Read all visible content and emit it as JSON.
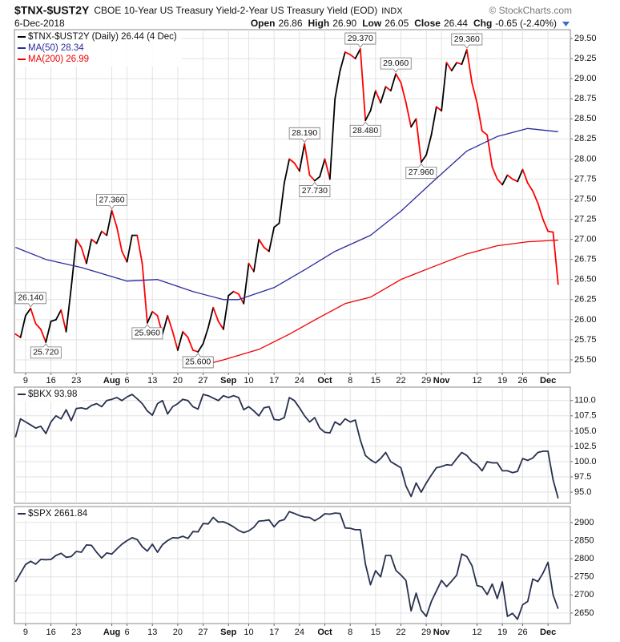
{
  "header": {
    "symbol": "$TNX-$UST2Y",
    "description": "CBOE 10-Year US Treasury Yield-2-Year US Treasury Yield (EOD)",
    "exchange": "INDX",
    "credit": "© StockCharts.com",
    "date": "6-Dec-2018",
    "stats": [
      {
        "label": "Open",
        "value": "26.86"
      },
      {
        "label": "High",
        "value": "26.90"
      },
      {
        "label": "Low",
        "value": "26.05"
      },
      {
        "label": "Close",
        "value": "26.44"
      },
      {
        "label": "Chg",
        "value": "-0.65 (-2.40%)"
      }
    ]
  },
  "chart_data": [
    {
      "type": "line",
      "xlim": [
        -0.2,
        109.4
      ],
      "ylim": [
        25.34,
        29.61
      ],
      "grid": true,
      "yticks": [
        {
          "value": 25.5,
          "label": "25.50"
        },
        {
          "value": 25.75,
          "label": "25.75"
        },
        {
          "value": 26,
          "label": "26.00"
        },
        {
          "value": 26.25,
          "label": "26.25"
        },
        {
          "value": 26.5,
          "label": "26.50"
        },
        {
          "value": 26.75,
          "label": "26.75"
        },
        {
          "value": 27,
          "label": "27.00"
        },
        {
          "value": 27.25,
          "label": "27.25"
        },
        {
          "value": 27.5,
          "label": "27.50"
        },
        {
          "value": 27.75,
          "label": "27.75"
        },
        {
          "value": 28,
          "label": "28.00"
        },
        {
          "value": 28.25,
          "label": "28.25"
        },
        {
          "value": 28.5,
          "label": "28.50"
        },
        {
          "value": 28.75,
          "label": "28.75"
        },
        {
          "value": 29,
          "label": "29.00"
        },
        {
          "value": 29.25,
          "label": "29.25"
        },
        {
          "value": 29.5,
          "label": "29.50"
        }
      ],
      "xticks": [
        {
          "value": 2,
          "label": "9"
        },
        {
          "value": 7,
          "label": "16"
        },
        {
          "value": 12,
          "label": "23"
        },
        {
          "value": 19,
          "label": "Aug"
        },
        {
          "value": 22,
          "label": "6"
        },
        {
          "value": 27,
          "label": "13"
        },
        {
          "value": 32,
          "label": "20"
        },
        {
          "value": 37,
          "label": "27"
        },
        {
          "value": 42,
          "label": "Sep"
        },
        {
          "value": 46,
          "label": "10"
        },
        {
          "value": 51,
          "label": "17"
        },
        {
          "value": 56,
          "label": "24"
        },
        {
          "value": 61,
          "label": "Oct"
        },
        {
          "value": 66,
          "label": "8"
        },
        {
          "value": 71,
          "label": "15"
        },
        {
          "value": 76,
          "label": "22"
        },
        {
          "value": 81,
          "label": "29"
        },
        {
          "value": 84,
          "label": "Nov"
        },
        {
          "value": 91,
          "label": "12"
        },
        {
          "value": 96,
          "label": "19"
        },
        {
          "value": 100,
          "label": "26"
        },
        {
          "value": 105,
          "label": "Dec"
        }
      ],
      "series": [
        {
          "name": "$TNX-$UST2Y (Daily) 26.44 (4 Dec)",
          "color": "#000000",
          "down_color": "#ff0000",
          "values": [
            25.82,
            25.78,
            26.05,
            26.14,
            25.95,
            25.88,
            25.72,
            25.98,
            26.0,
            26.12,
            25.85,
            26.4,
            27.0,
            26.9,
            26.7,
            27.0,
            26.95,
            27.1,
            27.05,
            27.36,
            27.15,
            26.85,
            26.72,
            27.05,
            27.05,
            26.7,
            25.96,
            26.1,
            26.05,
            25.82,
            26.05,
            25.85,
            25.62,
            25.85,
            25.78,
            25.62,
            25.6,
            25.7,
            25.9,
            26.15,
            25.98,
            25.88,
            26.3,
            26.35,
            26.32,
            26.2,
            26.7,
            26.6,
            27.0,
            26.9,
            26.85,
            27.15,
            27.2,
            27.7,
            28.0,
            27.95,
            27.85,
            28.19,
            27.8,
            27.73,
            27.78,
            28.0,
            27.75,
            28.75,
            29.1,
            29.33,
            29.3,
            29.25,
            29.37,
            28.48,
            28.6,
            28.85,
            28.7,
            28.9,
            28.85,
            29.06,
            28.95,
            28.7,
            28.4,
            28.5,
            27.96,
            28.05,
            28.3,
            28.65,
            28.6,
            29.2,
            29.1,
            29.2,
            29.18,
            29.36,
            28.95,
            28.7,
            28.35,
            28.3,
            27.9,
            27.75,
            27.68,
            27.8,
            27.75,
            27.72,
            27.87,
            27.7,
            27.6,
            27.45,
            27.25,
            27.1,
            27.09,
            26.44
          ]
        },
        {
          "name": "MA(50) 28.34",
          "color": "#2b2b9e",
          "x": [
            0,
            6,
            13,
            22,
            28,
            35,
            41,
            44,
            51,
            57,
            63,
            70,
            76,
            82,
            89,
            95,
            101,
            107
          ],
          "values": [
            26.9,
            26.75,
            26.65,
            26.48,
            26.5,
            26.35,
            26.25,
            26.25,
            26.4,
            26.62,
            26.85,
            27.05,
            27.35,
            27.7,
            28.1,
            28.28,
            28.38,
            28.34
          ]
        },
        {
          "name": "MA(200) 26.99",
          "color": "#ee0000",
          "x": [
            35,
            41,
            48,
            54,
            60,
            65,
            70,
            76,
            82,
            89,
            95,
            101,
            107
          ],
          "values": [
            25.4,
            25.5,
            25.63,
            25.82,
            26.03,
            26.2,
            26.28,
            26.5,
            26.65,
            26.82,
            26.92,
            26.97,
            26.99
          ]
        }
      ],
      "annotations": [
        {
          "x": 3,
          "label": "26.140",
          "position": "above"
        },
        {
          "x": 6,
          "label": "25.720",
          "position": "below"
        },
        {
          "x": 19,
          "label": "27.360",
          "position": "above"
        },
        {
          "x": 26,
          "label": "25.960",
          "position": "below"
        },
        {
          "x": 36,
          "label": "25.600",
          "position": "below"
        },
        {
          "x": 57,
          "label": "28.190",
          "position": "above"
        },
        {
          "x": 59,
          "label": "27.730",
          "position": "below"
        },
        {
          "x": 68,
          "label": "29.370",
          "position": "above"
        },
        {
          "x": 69,
          "label": "28.480",
          "position": "below"
        },
        {
          "x": 75,
          "label": "29.060",
          "position": "above"
        },
        {
          "x": 80,
          "label": "27.960",
          "position": "below"
        },
        {
          "x": 89,
          "label": "29.360",
          "position": "above"
        }
      ]
    },
    {
      "type": "line",
      "xlim": [
        -0.2,
        109.4
      ],
      "ylim": [
        93.17,
        112.2
      ],
      "grid": true,
      "yticks": [
        {
          "value": 95,
          "label": "95.0"
        },
        {
          "value": 97.5,
          "label": "97.5"
        },
        {
          "value": 100,
          "label": "100.0"
        },
        {
          "value": 102.5,
          "label": "102.5"
        },
        {
          "value": 105,
          "label": "105.0"
        },
        {
          "value": 107.5,
          "label": "107.5"
        },
        {
          "value": 110,
          "label": "110.0"
        }
      ],
      "series": [
        {
          "name": "$BKX 93.98",
          "color": "#27304f",
          "values": [
            104.0,
            107.0,
            106.5,
            106.0,
            105.5,
            105.8,
            104.6,
            106.5,
            107.5,
            107.0,
            108.5,
            106.7,
            108.7,
            108.8,
            108.6,
            109.2,
            109.5,
            109.0,
            110.0,
            110.2,
            110.5,
            110.0,
            110.6,
            111.0,
            110.3,
            109.5,
            108.3,
            107.6,
            109.5,
            110.0,
            107.8,
            109.0,
            109.5,
            110.2,
            110.0,
            109.0,
            108.6,
            111.0,
            110.8,
            110.4,
            110.0,
            110.8,
            110.5,
            110.8,
            110.5,
            108.5,
            109.0,
            108.3,
            107.5,
            108.8,
            109.0,
            106.9,
            106.8,
            107.2,
            110.5,
            110.0,
            108.8,
            107.5,
            106.5,
            107.2,
            105.5,
            104.8,
            104.7,
            106.5,
            106.0,
            107.0,
            106.5,
            106.8,
            103.5,
            101.0,
            100.3,
            99.8,
            100.5,
            101.5,
            100.0,
            99.5,
            99.0,
            96.0,
            94.3,
            96.5,
            95.0,
            96.5,
            97.8,
            99.0,
            99.2,
            99.5,
            99.4,
            100.5,
            101.5,
            101.0,
            100.0,
            99.5,
            98.5,
            100.0,
            99.8,
            99.8,
            98.5,
            98.5,
            98.2,
            98.4,
            100.5,
            100.2,
            100.6,
            101.5,
            101.7,
            101.7,
            97.0,
            93.98
          ]
        }
      ]
    },
    {
      "type": "line",
      "xlim": [
        -0.2,
        109.4
      ],
      "ylim": [
        2621,
        2944
      ],
      "grid": true,
      "yticks": [
        2650,
        2700,
        2750,
        2800,
        2850,
        2900
      ],
      "xticks": [
        {
          "value": 2,
          "label": "9"
        },
        {
          "value": 7,
          "label": "16"
        },
        {
          "value": 12,
          "label": "23"
        },
        {
          "value": 19,
          "label": "Aug"
        },
        {
          "value": 22,
          "label": "6"
        },
        {
          "value": 27,
          "label": "13"
        },
        {
          "value": 32,
          "label": "20"
        },
        {
          "value": 37,
          "label": "27"
        },
        {
          "value": 42,
          "label": "Sep"
        },
        {
          "value": 46,
          "label": "10"
        },
        {
          "value": 51,
          "label": "17"
        },
        {
          "value": 56,
          "label": "24"
        },
        {
          "value": 61,
          "label": "Oct"
        },
        {
          "value": 66,
          "label": "8"
        },
        {
          "value": 71,
          "label": "15"
        },
        {
          "value": 76,
          "label": "22"
        },
        {
          "value": 81,
          "label": "29"
        },
        {
          "value": 84,
          "label": "Nov"
        },
        {
          "value": 91,
          "label": "12"
        },
        {
          "value": 96,
          "label": "19"
        },
        {
          "value": 100,
          "label": "26"
        },
        {
          "value": 105,
          "label": "Dec"
        }
      ],
      "series": [
        {
          "name": "$SPX 2661.84",
          "color": "#27304f",
          "values": [
            2736,
            2760,
            2784,
            2793,
            2785,
            2798,
            2797,
            2798,
            2809,
            2815,
            2804,
            2806,
            2820,
            2818,
            2838,
            2837,
            2818,
            2802,
            2816,
            2813,
            2827,
            2840,
            2850,
            2858,
            2853,
            2833,
            2821,
            2840,
            2818,
            2839,
            2850,
            2858,
            2857,
            2862,
            2856,
            2875,
            2874,
            2897,
            2896,
            2914,
            2901,
            2902,
            2896,
            2888,
            2878,
            2872,
            2877,
            2887,
            2904,
            2905,
            2907,
            2888,
            2904,
            2908,
            2930,
            2925,
            2919,
            2915,
            2914,
            2905,
            2913,
            2924,
            2923,
            2926,
            2925,
            2885,
            2884,
            2880,
            2880,
            2785,
            2728,
            2767,
            2750,
            2809,
            2809,
            2768,
            2755,
            2740,
            2656,
            2705,
            2658,
            2641,
            2682,
            2711,
            2740,
            2723,
            2738,
            2755,
            2813,
            2806,
            2781,
            2726,
            2722,
            2701,
            2730,
            2690,
            2736,
            2641,
            2649,
            2633,
            2673,
            2682,
            2744,
            2737,
            2760,
            2790,
            2700,
            2662
          ]
        }
      ]
    }
  ]
}
